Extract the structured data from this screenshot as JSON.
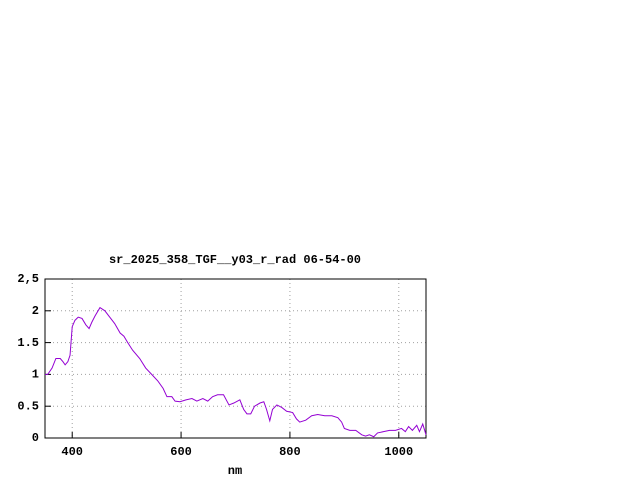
{
  "chart_data": {
    "type": "line",
    "title": "sr_2025_358_TGF__y03_r_rad 06-54-00",
    "x_label": "nm",
    "x": [
      350,
      355,
      363,
      370,
      378,
      383,
      387,
      392,
      396,
      400,
      405,
      411,
      418,
      425,
      431,
      436,
      442,
      451,
      460,
      469,
      478,
      488,
      495,
      502,
      511,
      524,
      535,
      546,
      557,
      567,
      574,
      583,
      589,
      598,
      609,
      620,
      629,
      640,
      649,
      658,
      667,
      678,
      688,
      697,
      708,
      715,
      721,
      728,
      735,
      745,
      752,
      757,
      763,
      768,
      776,
      785,
      794,
      805,
      812,
      818,
      829,
      840,
      851,
      864,
      877,
      888,
      895,
      900,
      910,
      921,
      932,
      939,
      946,
      954,
      961,
      972,
      983,
      994,
      1005,
      1012,
      1018,
      1025,
      1033,
      1038,
      1044,
      1050
    ],
    "series": [
      {
        "color": "#9400d3",
        "values": [
          1.0,
          1.0,
          1.1,
          1.25,
          1.25,
          1.2,
          1.15,
          1.2,
          1.3,
          1.75,
          1.85,
          1.9,
          1.88,
          1.78,
          1.72,
          1.82,
          1.92,
          2.05,
          2.0,
          1.9,
          1.8,
          1.65,
          1.6,
          1.5,
          1.38,
          1.25,
          1.1,
          1.0,
          0.9,
          0.78,
          0.65,
          0.65,
          0.58,
          0.57,
          0.6,
          0.62,
          0.58,
          0.62,
          0.58,
          0.65,
          0.68,
          0.68,
          0.52,
          0.55,
          0.6,
          0.45,
          0.38,
          0.38,
          0.5,
          0.55,
          0.57,
          0.45,
          0.27,
          0.45,
          0.52,
          0.48,
          0.42,
          0.4,
          0.3,
          0.25,
          0.28,
          0.35,
          0.37,
          0.35,
          0.35,
          0.32,
          0.25,
          0.15,
          0.12,
          0.12,
          0.05,
          0.03,
          0.05,
          0.02,
          0.08,
          0.1,
          0.12,
          0.12,
          0.15,
          0.1,
          0.18,
          0.12,
          0.2,
          0.1,
          0.22,
          0.05
        ]
      }
    ],
    "xlim": [
      350,
      1050
    ],
    "xticks": [
      400,
      600,
      800,
      1000
    ],
    "ylim": [
      0,
      2.5
    ],
    "yticks": [
      0,
      0.5,
      1,
      1.5,
      2,
      {
        "value": 2.5,
        "label": "2,5"
      }
    ],
    "grid": true
  }
}
